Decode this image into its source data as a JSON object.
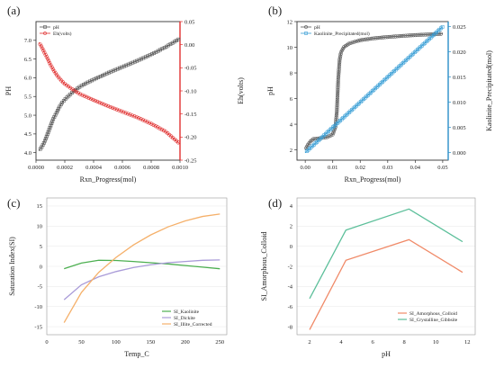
{
  "chart_data": [
    {
      "panel": "(a)",
      "type": "line",
      "xlabel": "Rxn_Progress(mol)",
      "ylabel": "PH",
      "y2label": "Eh(volts)",
      "xlim": [
        0,
        0.001
      ],
      "ylim": [
        3.8,
        7.5
      ],
      "y2lim": [
        -0.25,
        0.05
      ],
      "xticks": [
        "0.0000",
        "0.0002",
        "0.0004",
        "0.0006",
        "0.0008",
        "0.0010"
      ],
      "yticks": [
        "4.0",
        "4.5",
        "5.0",
        "5.5",
        "6.0",
        "6.5",
        "7.0"
      ],
      "y2ticks": [
        "0.05",
        "0.00",
        "-0.05",
        "-0.10",
        "-0.15",
        "-0.20",
        "-0.25"
      ],
      "colors": {
        "pH": "#555555",
        "Eh": "#e03030",
        "right_axis": "#e03030"
      },
      "series": [
        {
          "name": "pH",
          "axis": "left",
          "marker": "square",
          "x": [
            2e-05,
            4e-05,
            6e-05,
            8e-05,
            0.0001,
            0.00012,
            0.00014,
            0.00016,
            0.00018,
            0.0002,
            0.00025,
            0.0003,
            0.00035,
            0.0004,
            0.0005,
            0.0006,
            0.0007,
            0.0008,
            0.0009,
            0.001
          ],
          "y": [
            4.05,
            4.15,
            4.3,
            4.5,
            4.7,
            4.9,
            5.05,
            5.2,
            5.33,
            5.42,
            5.6,
            5.75,
            5.86,
            5.95,
            6.13,
            6.29,
            6.45,
            6.62,
            6.82,
            7.05
          ]
        },
        {
          "name": "Eh(volts)",
          "axis": "right",
          "marker": "circle",
          "x": [
            2e-05,
            4e-05,
            6e-05,
            8e-05,
            0.0001,
            0.00012,
            0.00014,
            0.00016,
            0.00018,
            0.0002,
            0.00025,
            0.0003,
            0.00035,
            0.0004,
            0.0005,
            0.0006,
            0.0007,
            0.0008,
            0.0009,
            0.001
          ],
          "y": [
            0.005,
            -0.005,
            -0.018,
            -0.03,
            -0.043,
            -0.054,
            -0.064,
            -0.072,
            -0.079,
            -0.085,
            -0.096,
            -0.106,
            -0.113,
            -0.12,
            -0.133,
            -0.145,
            -0.157,
            -0.171,
            -0.188,
            -0.215
          ]
        }
      ]
    },
    {
      "panel": "(b)",
      "type": "line",
      "xlabel": "Rxn_Progress(mol)",
      "ylabel": "pH",
      "y2label": "Kaolinite_Precipitated(mol)",
      "xlim": [
        -0.003,
        0.052
      ],
      "ylim": [
        1.2,
        12
      ],
      "y2lim": [
        -0.0015,
        0.026
      ],
      "xticks": [
        "0.00",
        "0.01",
        "0.02",
        "0.03",
        "0.04",
        "0.05"
      ],
      "yticks": [
        "2",
        "4",
        "6",
        "8",
        "10",
        "12"
      ],
      "y2ticks": [
        "0.000",
        "0.005",
        "0.010",
        "0.015",
        "0.020",
        "0.025"
      ],
      "colors": {
        "pH": "#555555",
        "Kaolinite": "#3a9fd6",
        "right_axis": "#2a8fc8"
      },
      "series": [
        {
          "name": "pH",
          "axis": "left",
          "marker": "circle",
          "x": [
            0.0,
            0.001,
            0.002,
            0.003,
            0.005,
            0.008,
            0.01,
            0.011,
            0.0115,
            0.012,
            0.0125,
            0.013,
            0.014,
            0.016,
            0.02,
            0.025,
            0.03,
            0.035,
            0.04,
            0.045,
            0.05
          ],
          "y": [
            2.0,
            2.4,
            2.7,
            2.85,
            2.9,
            3.0,
            3.2,
            3.8,
            5.0,
            7.5,
            9.0,
            9.6,
            10.0,
            10.3,
            10.55,
            10.7,
            10.8,
            10.88,
            10.95,
            11.0,
            11.05
          ]
        },
        {
          "name": "Kaolinite_Precipitated(mol)",
          "axis": "right",
          "marker": "square",
          "x": [
            0.0,
            0.005,
            0.01,
            0.015,
            0.02,
            0.025,
            0.03,
            0.035,
            0.04,
            0.045,
            0.05
          ],
          "y": [
            0.0,
            0.0025,
            0.005,
            0.0075,
            0.01,
            0.0125,
            0.015,
            0.0175,
            0.02,
            0.0225,
            0.025
          ]
        }
      ]
    },
    {
      "panel": "(c)",
      "type": "line",
      "xlabel": "Temp_C",
      "ylabel": "Saturation Index(SI)",
      "xlim": [
        0,
        260
      ],
      "ylim": [
        -17,
        17
      ],
      "xticks": [
        "0",
        "50",
        "100",
        "150",
        "200",
        "250"
      ],
      "yticks": [
        "-15",
        "-10",
        "-5",
        "0",
        "5",
        "10",
        "15"
      ],
      "legend_position": "bottom-right",
      "series": [
        {
          "name": "SI_Kaolinite",
          "color": "#4caf50",
          "x": [
            25,
            50,
            75,
            100,
            125,
            150,
            175,
            200,
            225,
            250
          ],
          "y": [
            -0.6,
            0.8,
            1.5,
            1.45,
            1.2,
            0.9,
            0.6,
            0.2,
            -0.2,
            -0.6
          ]
        },
        {
          "name": "SI_Dickite",
          "color": "#a99bd8",
          "x": [
            25,
            50,
            75,
            100,
            125,
            150,
            175,
            200,
            225,
            250
          ],
          "y": [
            -8.3,
            -4.6,
            -2.6,
            -1.3,
            -0.3,
            0.4,
            0.9,
            1.2,
            1.5,
            1.6
          ]
        },
        {
          "name": "SI_Illite_Corrected",
          "color": "#f5b06a",
          "x": [
            25,
            50,
            75,
            100,
            125,
            150,
            175,
            200,
            225,
            250
          ],
          "y": [
            -14,
            -6.5,
            -1.5,
            2.2,
            5.3,
            7.8,
            9.8,
            11.3,
            12.4,
            13.0
          ]
        }
      ]
    },
    {
      "panel": "(d)",
      "type": "line",
      "xlabel": "pH",
      "ylabel": "SI_Amorphous_Colloid",
      "xlim": [
        1.2,
        12.5
      ],
      "ylim": [
        -8.8,
        4.8
      ],
      "xticks": [
        "2",
        "4",
        "6",
        "8",
        "10",
        "12"
      ],
      "yticks": [
        "-8",
        "-6",
        "-4",
        "-2",
        "0",
        "2",
        "4"
      ],
      "legend_position": "bottom-right",
      "series": [
        {
          "name": "SI_Amorphous_Colloid",
          "color": "#f08a68",
          "x": [
            2.0,
            4.3,
            8.3,
            11.7
          ],
          "y": [
            -8.3,
            -1.4,
            0.65,
            -2.6
          ]
        },
        {
          "name": "SI_Crystalline_Gibbsite",
          "color": "#5cbf9a",
          "x": [
            2.0,
            4.3,
            8.3,
            11.7
          ],
          "y": [
            -5.2,
            1.6,
            3.7,
            0.45
          ]
        }
      ]
    }
  ]
}
